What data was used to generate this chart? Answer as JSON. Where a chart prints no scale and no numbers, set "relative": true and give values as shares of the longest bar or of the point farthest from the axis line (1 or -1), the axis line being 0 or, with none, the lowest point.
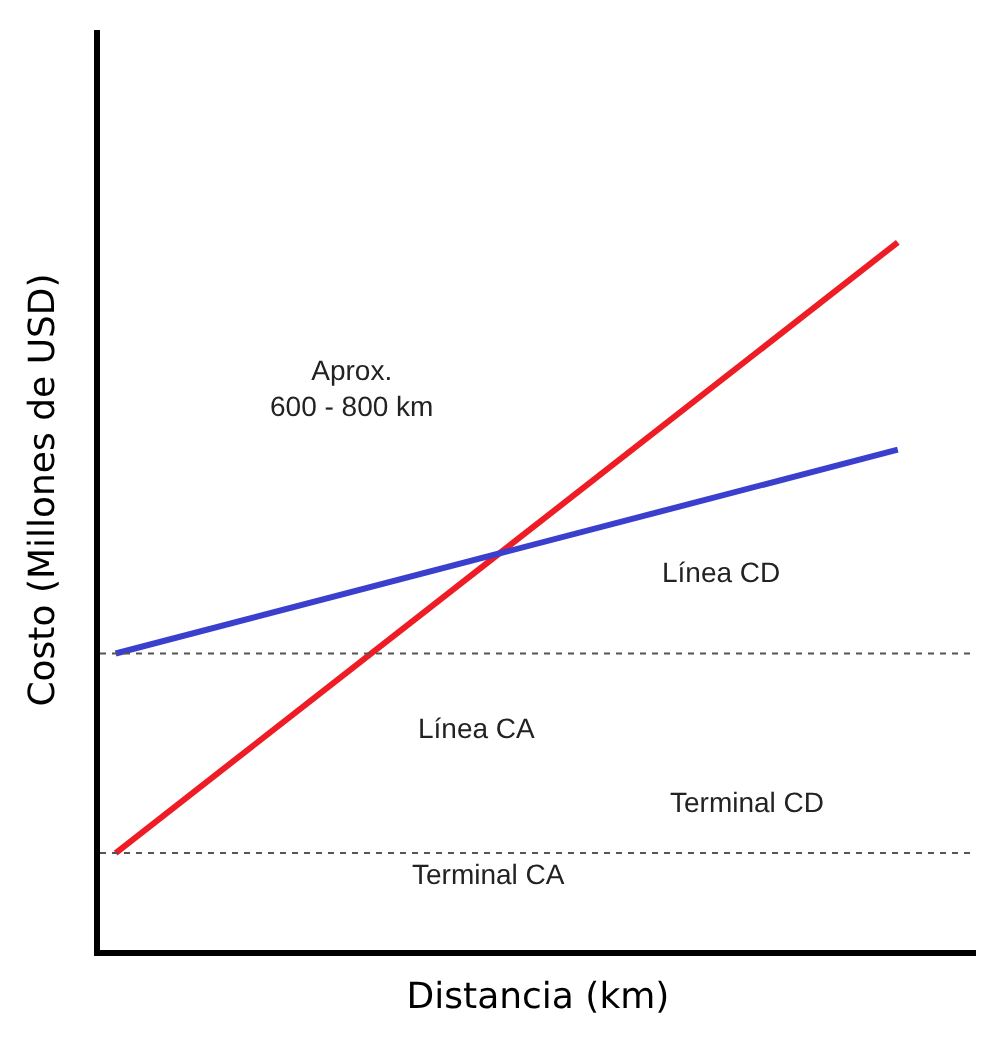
{
  "chart_data": {
    "type": "line",
    "relative": true,
    "xlabel": "Distancia (km)",
    "ylabel": "Costo (Millones de USD)",
    "categories": [
      null,
      null
    ],
    "tick_labels": false,
    "series": [
      {
        "color": "#ee1c25",
        "values": [
          0.137,
          1.0
        ]
      },
      {
        "color": "#3b3fce",
        "values": [
          0.419,
          0.707
        ]
      }
    ],
    "ref_lines": [
      {
        "axis": "y",
        "value": 0.419,
        "line_style": "dotted",
        "color": "#555555"
      },
      {
        "axis": "y",
        "value": 0.137,
        "line_style": "dotted",
        "color": "#555555"
      }
    ],
    "annotations": [
      "Aprox.\n600 - 800 km",
      "Línea CD",
      "Línea CA",
      "Terminal CD",
      "Terminal CA"
    ]
  }
}
